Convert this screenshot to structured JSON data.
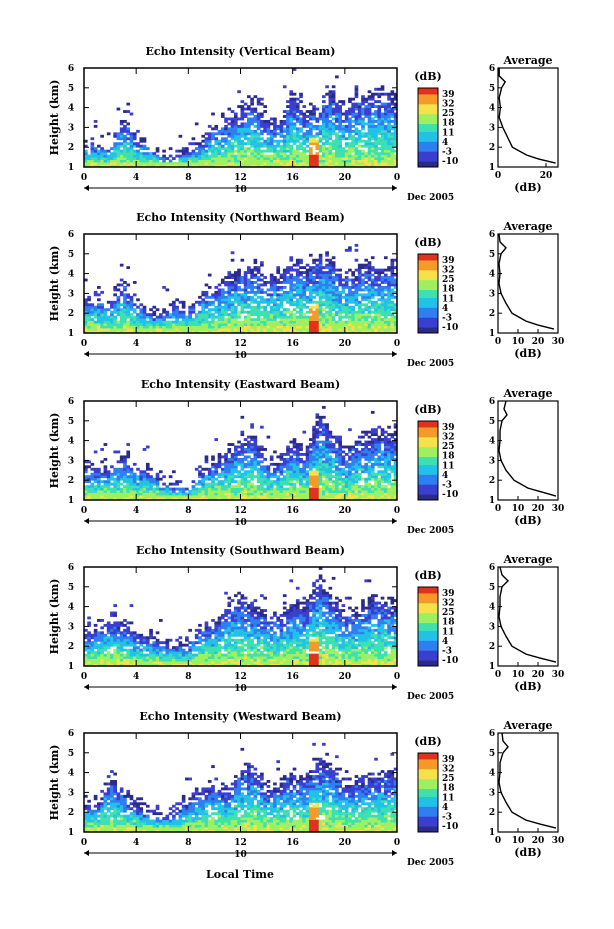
{
  "figure": {
    "xlabel": "Local Time",
    "date_label": "Dec 2005",
    "day_label": "10",
    "x_ticks": [
      "0",
      "4",
      "8",
      "12",
      "16",
      "20",
      "0"
    ],
    "y_ticks": [
      "1",
      "2",
      "3",
      "4",
      "5",
      "6"
    ],
    "ylabel": "Height (km)",
    "colorbar_title": "(dB)",
    "colorbar_ticks": [
      "39",
      "32",
      "25",
      "18",
      "11",
      "4",
      "-3",
      "-10"
    ],
    "colorbar_colors": [
      "#2b2b8a",
      "#3a3fd0",
      "#2e7ff0",
      "#22c2e8",
      "#3fe0b0",
      "#9ef060",
      "#f5e24a",
      "#f39a2a",
      "#e0321c"
    ],
    "average_title": "Average",
    "average_xlabel": "(dB)"
  },
  "chart_data": [
    {
      "type": "heatmap",
      "title": "Echo Intensity (Vertical Beam)",
      "xlabel": "Local Time",
      "ylabel": "Height (km)",
      "xlim": [
        0,
        24
      ],
      "ylim": [
        1,
        6
      ],
      "color_scale_db": [
        -10,
        39
      ],
      "echo_top_profile": [
        {
          "t": 1,
          "top": 2.2
        },
        {
          "t": 2,
          "top": 1.9
        },
        {
          "t": 3,
          "top": 3.6
        },
        {
          "t": 4,
          "top": 2.4
        },
        {
          "t": 5,
          "top": 2.0
        },
        {
          "t": 6,
          "top": 1.5
        },
        {
          "t": 7,
          "top": 1.5
        },
        {
          "t": 8,
          "top": 1.8
        },
        {
          "t": 9,
          "top": 2.2
        },
        {
          "t": 10,
          "top": 3.0
        },
        {
          "t": 11,
          "top": 3.3
        },
        {
          "t": 12,
          "top": 3.8
        },
        {
          "t": 13,
          "top": 4.4
        },
        {
          "t": 14,
          "top": 3.4
        },
        {
          "t": 15,
          "top": 3.2
        },
        {
          "t": 16,
          "top": 4.8
        },
        {
          "t": 17,
          "top": 3.8
        },
        {
          "t": 18,
          "top": 4.2
        },
        {
          "t": 19,
          "top": 4.9
        },
        {
          "t": 20,
          "top": 3.8
        },
        {
          "t": 21,
          "top": 4.6
        },
        {
          "t": 22,
          "top": 4.5
        },
        {
          "t": 23,
          "top": 4.6
        }
      ],
      "average_profile": {
        "xlim": [
          0,
          25
        ],
        "x_ticks": [
          "0",
          "20"
        ],
        "height_km": [
          1.2,
          1.4,
          1.6,
          2.0,
          2.5,
          3.0,
          3.5,
          4.0,
          4.5,
          5.0,
          5.3,
          5.6,
          6.0
        ],
        "db": [
          24,
          17,
          12,
          6,
          4,
          2,
          0.5,
          1,
          0.5,
          1.5,
          3,
          0.5,
          0.5
        ]
      }
    },
    {
      "type": "heatmap",
      "title": "Echo Intensity (Northward Beam)",
      "xlabel": "Local Time",
      "ylabel": "Height (km)",
      "xlim": [
        0,
        24
      ],
      "ylim": [
        1,
        6
      ],
      "color_scale_db": [
        -10,
        39
      ],
      "echo_top_profile": [
        {
          "t": 1,
          "top": 2.8
        },
        {
          "t": 2,
          "top": 2.4
        },
        {
          "t": 3,
          "top": 3.6
        },
        {
          "t": 4,
          "top": 2.6
        },
        {
          "t": 5,
          "top": 2.0
        },
        {
          "t": 6,
          "top": 2.0
        },
        {
          "t": 7,
          "top": 2.4
        },
        {
          "t": 8,
          "top": 2.2
        },
        {
          "t": 9,
          "top": 3.0
        },
        {
          "t": 10,
          "top": 3.2
        },
        {
          "t": 11,
          "top": 3.8
        },
        {
          "t": 12,
          "top": 4.2
        },
        {
          "t": 13,
          "top": 4.4
        },
        {
          "t": 14,
          "top": 3.6
        },
        {
          "t": 15,
          "top": 4.0
        },
        {
          "t": 16,
          "top": 4.8
        },
        {
          "t": 17,
          "top": 4.2
        },
        {
          "t": 18,
          "top": 5.0
        },
        {
          "t": 19,
          "top": 4.6
        },
        {
          "t": 20,
          "top": 4.0
        },
        {
          "t": 21,
          "top": 4.2
        },
        {
          "t": 22,
          "top": 4.4
        },
        {
          "t": 23,
          "top": 4.4
        }
      ],
      "average_profile": {
        "xlim": [
          0,
          30
        ],
        "x_ticks": [
          "0",
          "10",
          "20",
          "30"
        ],
        "height_km": [
          1.2,
          1.4,
          1.6,
          2.0,
          2.5,
          3.0,
          3.5,
          4.0,
          4.5,
          5.0,
          5.3,
          5.6,
          6.0
        ],
        "db": [
          28,
          20,
          14,
          7,
          4,
          1.5,
          0.5,
          1,
          0.5,
          1.5,
          4,
          1,
          0.5
        ]
      }
    },
    {
      "type": "heatmap",
      "title": "Echo Intensity (Eastward Beam)",
      "xlabel": "Local Time",
      "ylabel": "Height (km)",
      "xlim": [
        0,
        24
      ],
      "ylim": [
        1,
        6
      ],
      "color_scale_db": [
        -10,
        39
      ],
      "echo_top_profile": [
        {
          "t": 1,
          "top": 2.6
        },
        {
          "t": 2,
          "top": 2.6
        },
        {
          "t": 3,
          "top": 3.2
        },
        {
          "t": 4,
          "top": 2.6
        },
        {
          "t": 5,
          "top": 2.6
        },
        {
          "t": 6,
          "top": 2.0
        },
        {
          "t": 7,
          "top": 1.6
        },
        {
          "t": 8,
          "top": 1.6
        },
        {
          "t": 9,
          "top": 2.6
        },
        {
          "t": 10,
          "top": 3.0
        },
        {
          "t": 11,
          "top": 3.4
        },
        {
          "t": 12,
          "top": 4.0
        },
        {
          "t": 13,
          "top": 4.4
        },
        {
          "t": 14,
          "top": 3.0
        },
        {
          "t": 15,
          "top": 3.0
        },
        {
          "t": 16,
          "top": 4.0
        },
        {
          "t": 17,
          "top": 3.2
        },
        {
          "t": 18,
          "top": 5.2
        },
        {
          "t": 19,
          "top": 4.6
        },
        {
          "t": 20,
          "top": 3.4
        },
        {
          "t": 21,
          "top": 4.0
        },
        {
          "t": 22,
          "top": 4.2
        },
        {
          "t": 23,
          "top": 4.4
        }
      ],
      "average_profile": {
        "xlim": [
          0,
          30
        ],
        "x_ticks": [
          "0",
          "10",
          "20",
          "30"
        ],
        "height_km": [
          1.2,
          1.4,
          1.6,
          2.0,
          2.5,
          3.0,
          3.5,
          4.0,
          4.5,
          5.0,
          5.3,
          5.6,
          6.0
        ],
        "db": [
          29,
          22,
          15,
          8,
          4,
          1.5,
          0.5,
          1,
          1,
          2,
          4.5,
          3,
          4
        ]
      }
    },
    {
      "type": "heatmap",
      "title": "Echo Intensity (Southward Beam)",
      "xlabel": "Local Time",
      "ylabel": "Height (km)",
      "xlim": [
        0,
        24
      ],
      "ylim": [
        1,
        6
      ],
      "color_scale_db": [
        -10,
        39
      ],
      "echo_top_profile": [
        {
          "t": 1,
          "top": 2.8
        },
        {
          "t": 2,
          "top": 3.4
        },
        {
          "t": 3,
          "top": 3.2
        },
        {
          "t": 4,
          "top": 2.6
        },
        {
          "t": 5,
          "top": 2.4
        },
        {
          "t": 6,
          "top": 2.2
        },
        {
          "t": 7,
          "top": 2.0
        },
        {
          "t": 8,
          "top": 2.0
        },
        {
          "t": 9,
          "top": 3.0
        },
        {
          "t": 10,
          "top": 3.2
        },
        {
          "t": 11,
          "top": 4.0
        },
        {
          "t": 12,
          "top": 4.4
        },
        {
          "t": 13,
          "top": 4.0
        },
        {
          "t": 14,
          "top": 3.6
        },
        {
          "t": 15,
          "top": 3.4
        },
        {
          "t": 16,
          "top": 4.2
        },
        {
          "t": 17,
          "top": 4.0
        },
        {
          "t": 18,
          "top": 5.4
        },
        {
          "t": 19,
          "top": 4.6
        },
        {
          "t": 20,
          "top": 3.6
        },
        {
          "t": 21,
          "top": 3.8
        },
        {
          "t": 22,
          "top": 4.4
        },
        {
          "t": 23,
          "top": 4.2
        }
      ],
      "average_profile": {
        "xlim": [
          0,
          30
        ],
        "x_ticks": [
          "0",
          "10",
          "20",
          "30"
        ],
        "height_km": [
          1.2,
          1.4,
          1.6,
          2.0,
          2.5,
          3.0,
          3.5,
          4.0,
          4.5,
          5.0,
          5.3,
          5.6,
          6.0
        ],
        "db": [
          29,
          21,
          14,
          7,
          4,
          1.5,
          0.5,
          1,
          1,
          2,
          5,
          2,
          1
        ]
      }
    },
    {
      "type": "heatmap",
      "title": "Echo Intensity (Westward Beam)",
      "xlabel": "Local Time",
      "ylabel": "Height (km)",
      "xlim": [
        0,
        24
      ],
      "ylim": [
        1,
        6
      ],
      "color_scale_db": [
        -10,
        39
      ],
      "echo_top_profile": [
        {
          "t": 1,
          "top": 2.4
        },
        {
          "t": 2,
          "top": 3.8
        },
        {
          "t": 3,
          "top": 3.0
        },
        {
          "t": 4,
          "top": 2.4
        },
        {
          "t": 5,
          "top": 2.0
        },
        {
          "t": 6,
          "top": 1.8
        },
        {
          "t": 7,
          "top": 2.0
        },
        {
          "t": 8,
          "top": 2.6
        },
        {
          "t": 9,
          "top": 3.0
        },
        {
          "t": 10,
          "top": 3.4
        },
        {
          "t": 11,
          "top": 3.0
        },
        {
          "t": 12,
          "top": 4.0
        },
        {
          "t": 13,
          "top": 4.4
        },
        {
          "t": 14,
          "top": 3.2
        },
        {
          "t": 15,
          "top": 3.4
        },
        {
          "t": 16,
          "top": 4.0
        },
        {
          "t": 17,
          "top": 3.6
        },
        {
          "t": 18,
          "top": 4.8
        },
        {
          "t": 19,
          "top": 4.4
        },
        {
          "t": 20,
          "top": 3.4
        },
        {
          "t": 21,
          "top": 3.6
        },
        {
          "t": 22,
          "top": 3.8
        },
        {
          "t": 23,
          "top": 4.0
        }
      ],
      "average_profile": {
        "xlim": [
          0,
          30
        ],
        "x_ticks": [
          "0",
          "10",
          "20",
          "30"
        ],
        "height_km": [
          1.2,
          1.4,
          1.6,
          2.0,
          2.5,
          3.0,
          3.5,
          4.0,
          4.5,
          5.0,
          5.3,
          5.6,
          6.0
        ],
        "db": [
          29,
          21,
          14,
          7,
          4,
          1.5,
          0.5,
          1,
          1,
          2.5,
          5,
          2.5,
          2
        ]
      }
    }
  ]
}
